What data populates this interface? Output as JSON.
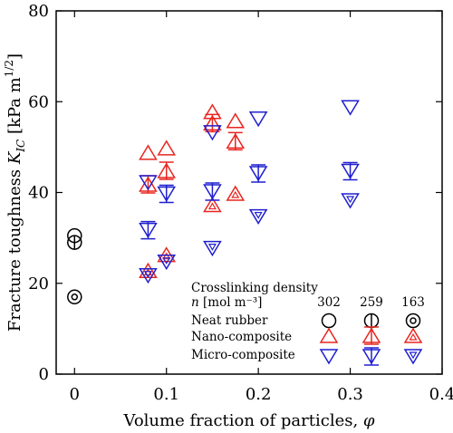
{
  "chart_data": {
    "type": "scatter",
    "xlabel": "Volume fraction of particles, φ",
    "ylabel": "Fracture toughness K_IC [kPa m^1/2]",
    "xlim": [
      -0.02,
      0.4
    ],
    "ylim": [
      0,
      80
    ],
    "x_ticks": [
      "0",
      "0.1",
      "0.2",
      "0.3",
      "0.4"
    ],
    "x_tick_values": [
      0,
      0.1,
      0.2,
      0.3,
      0.4
    ],
    "y_ticks": [
      "0",
      "20",
      "40",
      "60",
      "80"
    ],
    "y_tick_values": [
      0,
      20,
      40,
      60,
      80
    ],
    "grid": false,
    "legend": {
      "title_line1": "Crosslinking density",
      "title_line2": "n [mol m⁻³]",
      "densities": [
        "302",
        "259",
        "163"
      ],
      "rows": [
        "Neat rubber",
        "Nano-composite",
        "Micro-composite"
      ],
      "placement": "bottom-right"
    },
    "series": [
      {
        "material": "Neat rubber",
        "marker": "circle",
        "color": "#000000",
        "crosslinking_density": "302",
        "x": [
          0
        ],
        "y": [
          30.5
        ]
      },
      {
        "material": "Neat rubber",
        "marker": "circle",
        "color": "#000000",
        "crosslinking_density": "259",
        "x": [
          0
        ],
        "y": [
          29
        ]
      },
      {
        "material": "Neat rubber",
        "marker": "circle",
        "color": "#000000",
        "crosslinking_density": "163",
        "x": [
          0
        ],
        "y": [
          17
        ]
      },
      {
        "material": "Nano-composite",
        "marker": "triangle-up",
        "color": "#e8251f",
        "crosslinking_density": "302",
        "x": [
          0.08,
          0.1,
          0.15,
          0.175
        ],
        "y": [
          48.5,
          49.5,
          57.5,
          55.5
        ]
      },
      {
        "material": "Nano-composite",
        "marker": "triangle-up",
        "color": "#e8251f",
        "crosslinking_density": "259",
        "x": [
          0.08,
          0.1,
          0.15,
          0.175
        ],
        "y": [
          41.5,
          44.5,
          55,
          51
        ]
      },
      {
        "material": "Nano-composite",
        "marker": "triangle-up",
        "color": "#e8251f",
        "crosslinking_density": "163",
        "x": [
          0.08,
          0.1,
          0.15,
          0.175
        ],
        "y": [
          22.5,
          26,
          37,
          39.5
        ]
      },
      {
        "material": "Micro-composite",
        "marker": "triangle-down",
        "color": "#1f1fd0",
        "crosslinking_density": "302",
        "x": [
          0.08,
          0.15,
          0.2,
          0.3
        ],
        "y": [
          42.5,
          53.5,
          56.5,
          59
        ]
      },
      {
        "material": "Micro-composite",
        "marker": "triangle-down",
        "color": "#1f1fd0",
        "crosslinking_density": "259",
        "x": [
          0.08,
          0.1,
          0.15,
          0.2,
          0.3
        ],
        "y": [
          32,
          40,
          40.5,
          44.5,
          45
        ]
      },
      {
        "material": "Micro-composite",
        "marker": "triangle-down",
        "color": "#1f1fd0",
        "crosslinking_density": "163",
        "x": [
          0.08,
          0.1,
          0.15,
          0.2,
          0.3
        ],
        "y": [
          22,
          25,
          28,
          35,
          38.5
        ]
      }
    ]
  }
}
